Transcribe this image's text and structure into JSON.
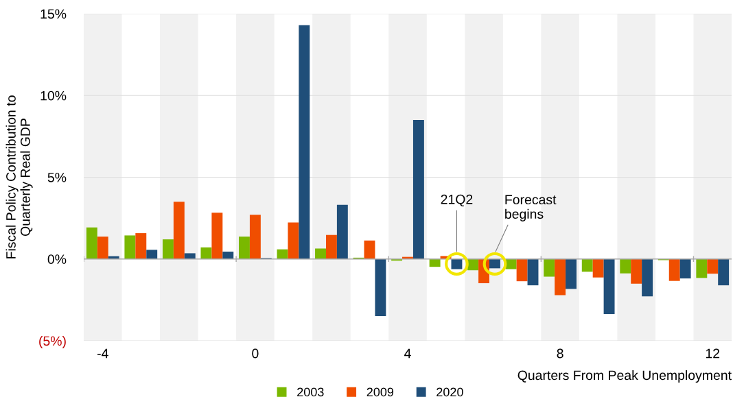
{
  "chart_data": {
    "type": "bar",
    "ylabel": "Fiscal Policy Contribution to\nQuarterly Real GDP",
    "xlabel": "Quarters From Peak Unemployment",
    "categories": [
      "-4",
      null,
      null,
      null,
      "0",
      null,
      null,
      null,
      "4",
      null,
      null,
      null,
      "8",
      null,
      null,
      null,
      "12"
    ],
    "series": [
      {
        "name": "2003",
        "color": "#7ab800",
        "values": [
          1.93,
          1.44,
          1.2,
          0.71,
          1.37,
          0.59,
          0.64,
          0.08,
          -0.1,
          -0.48,
          -0.69,
          -0.62,
          -1.08,
          -0.78,
          -0.88,
          -0.07,
          -1.16
        ]
      },
      {
        "name": "2009",
        "color": "#f04e00",
        "values": [
          1.37,
          1.58,
          3.5,
          2.83,
          2.7,
          2.23,
          1.47,
          1.13,
          0.13,
          0.18,
          -1.48,
          -1.36,
          -2.21,
          -1.13,
          -1.51,
          -1.34,
          -0.9
        ]
      },
      {
        "name": "2020",
        "color": "#1f4e79",
        "values": [
          0.17,
          0.56,
          0.35,
          0.45,
          0.06,
          14.3,
          3.31,
          -3.49,
          8.5,
          -0.62,
          -0.57,
          -1.61,
          -1.83,
          -3.36,
          -2.28,
          -1.19,
          -1.61
        ]
      }
    ],
    "ylim": [
      -5,
      15
    ],
    "yticks": [
      {
        "value": -5,
        "label": "(5%)"
      },
      {
        "value": 0,
        "label": "0%"
      },
      {
        "value": 5,
        "label": "5%"
      },
      {
        "value": 10,
        "label": "10%"
      },
      {
        "value": 15,
        "label": "15%"
      }
    ],
    "annotations": [
      "21Q2",
      "Forecast\nbegins"
    ],
    "grid": "y",
    "legend": "bottom"
  }
}
